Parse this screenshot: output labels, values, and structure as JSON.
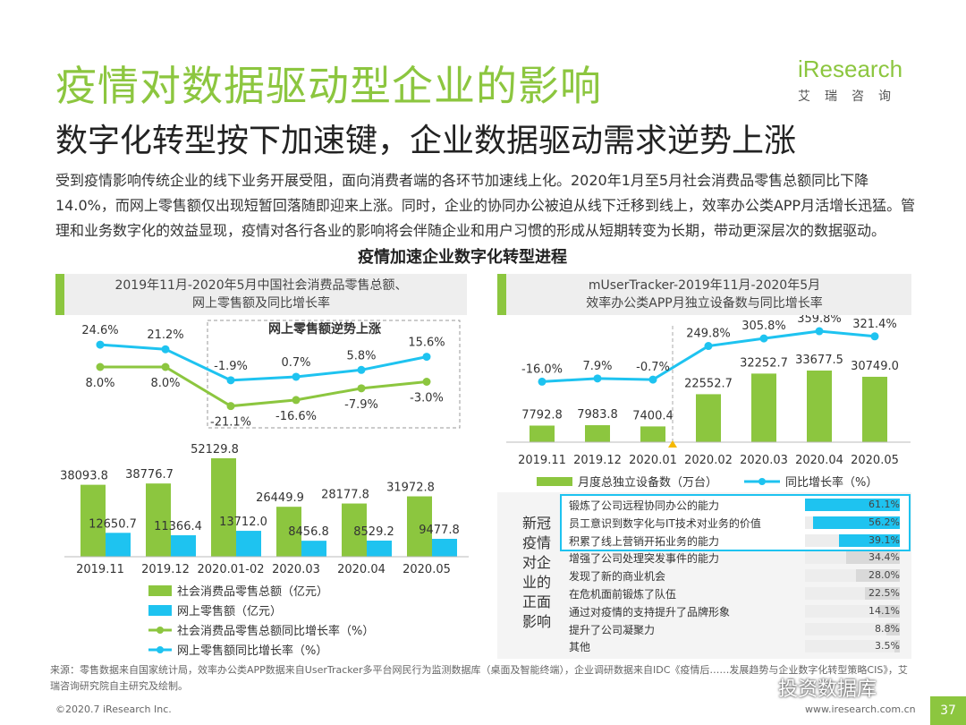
{
  "header": {
    "title": "疫情对数据驱动型企业的影响",
    "subtitle": "数字化转型按下加速键，企业数据驱动需求逆势上涨",
    "logo_text": "iResearch",
    "logo_cn": "艾瑞咨询"
  },
  "intro": "受到疫情影响传统企业的线下业务开展受阻，面向消费者端的各环节加速线上化。2020年1月至5月社会消费品零售总额同比下降14.0%，而网上零售额仅出现短暂回落随即迎来上涨。同时，企业的协同办公被迫从线下迁移到线上，效率办公类APP月活增长迅猛。管理和业务数字化的效益显现，疫情对各行各业的影响将会伴随企业和用户习惯的形成从短期转变为长期，带动更深层次的数据驱动。",
  "section_title": "疫情加速企业数字化转型进程",
  "left_panel": {
    "header_line1": "2019年11月-2020年5月中国社会消费品零售总额、",
    "header_line2": "网上零售额及同比增长率",
    "annotation": "网上零售额逆势上涨"
  },
  "right_panel": {
    "header_line1": "mUserTracker-2019年11月-2020年5月",
    "header_line2": "效率办公类APP月独立设备数与同比增长率"
  },
  "survey": {
    "label": "新冠疫情对企业的正面影响",
    "label_lines": [
      "新冠",
      "疫情",
      "对企",
      "业的",
      "正面",
      "影响"
    ],
    "items": [
      {
        "text": "锻炼了公司远程协同办公的能力",
        "value": "61.1%",
        "pct": 61.1,
        "highlight": true
      },
      {
        "text": "员工意识到数字化与IT技术对业务的价值",
        "value": "56.2%",
        "pct": 56.2,
        "highlight": true
      },
      {
        "text": "积累了线上营销开拓业务的能力",
        "value": "39.1%",
        "pct": 39.1,
        "highlight": true
      },
      {
        "text": "增强了公司处理突发事件的能力",
        "value": "34.4%",
        "pct": 34.4,
        "highlight": false
      },
      {
        "text": "发现了新的商业机会",
        "value": "28.0%",
        "pct": 28.0,
        "highlight": false
      },
      {
        "text": "在危机面前锻炼了队伍",
        "value": "22.5%",
        "pct": 22.5,
        "highlight": false
      },
      {
        "text": "通过对疫情的支持提升了品牌形象",
        "value": "14.1%",
        "pct": 14.1,
        "highlight": false
      },
      {
        "text": "提升了公司凝聚力",
        "value": "8.8%",
        "pct": 8.8,
        "highlight": false
      },
      {
        "text": "其他",
        "value": "3.5%",
        "pct": 3.5,
        "highlight": false
      }
    ]
  },
  "chart_data": [
    {
      "type": "bar",
      "categories": [
        "2019.11",
        "2019.12",
        "2020.01-02",
        "2020.03",
        "2020.04",
        "2020.05"
      ],
      "series": [
        {
          "name": "社会消费品零售总额（亿元）",
          "values": [
            38093.8,
            38776.7,
            52129.8,
            26449.9,
            28177.8,
            31972.8
          ],
          "labels": [
            "38093.8",
            "38776.7",
            "52129.8",
            "26449.9",
            "28177.8",
            "31972.8"
          ]
        },
        {
          "name": "网上零售额（亿元）",
          "values": [
            12650.7,
            11366.4,
            13712.0,
            8456.8,
            8529.2,
            9477.8
          ],
          "labels": [
            "12650.7",
            "11366.4",
            "13712.0",
            "8456.8",
            "8529.2",
            "9477.8"
          ]
        },
        {
          "name": "社会消费品零售总额同比增长率（%）",
          "values": [
            8.0,
            8.0,
            -21.1,
            -16.6,
            -7.9,
            -3.0
          ],
          "labels": [
            "8.0%",
            "8.0%",
            "-21.1%",
            "-16.6%",
            "-7.9%",
            "-3.0%"
          ]
        },
        {
          "name": "网上零售额同比增长率（%）",
          "values": [
            24.6,
            21.2,
            -1.9,
            0.7,
            5.8,
            15.6
          ],
          "labels": [
            "24.6%",
            "21.2%",
            "-1.9%",
            "0.7%",
            "5.8%",
            "15.6%"
          ]
        }
      ]
    },
    {
      "type": "bar",
      "categories": [
        "2019.11",
        "2019.12",
        "2020.01",
        "2020.02",
        "2020.03",
        "2020.04",
        "2020.05"
      ],
      "series": [
        {
          "name": "月度总独立设备数（万台）",
          "values": [
            7792.8,
            7983.8,
            7400.4,
            22552.7,
            32252.7,
            33677.5,
            30749.0
          ],
          "labels": [
            "7792.8",
            "7983.8",
            "7400.4",
            "22552.7",
            "32252.7",
            "33677.5",
            "30749.0"
          ]
        },
        {
          "name": "同比增长率（%）",
          "values": [
            -16.0,
            7.9,
            -0.7,
            249.8,
            305.8,
            359.8,
            321.4
          ],
          "labels": [
            "-16.0%",
            "7.9%",
            "-0.7%",
            "249.8%",
            "305.8%",
            "359.8%",
            "321.4%"
          ]
        }
      ]
    },
    {
      "type": "bar",
      "title": "新冠疫情对企业的正面影响",
      "categories": [
        "锻炼了公司远程协同办公的能力",
        "员工意识到数字化与IT技术对业务的价值",
        "积累了线上营销开拓业务的能力",
        "增强了公司处理突发事件的能力",
        "发现了新的商业机会",
        "在危机面前锻炼了队伍",
        "通过对疫情的支持提升了品牌形象",
        "提升了公司凝聚力",
        "其他"
      ],
      "values": [
        61.1,
        56.2,
        39.1,
        34.4,
        28.0,
        22.5,
        14.1,
        8.8,
        3.5
      ]
    }
  ],
  "footer": {
    "source": "来源：零售数据来自国家统计局，效率办公类APP数据来自UserTracker多平台网民行为监测数据库（桌面及智能终端），企业调研数据来自IDC《疫情后……发展趋势与企业数字化转型策略CIS》，艾瑞咨询研究院自主研究及绘制。",
    "copyright": "©2020.7 iResearch Inc.",
    "website": "www.iresearch.com.cn",
    "page": "37",
    "watermark": "投资数据库"
  },
  "colors": {
    "green": "#8cc63f",
    "cyan": "#1ec3f0",
    "grey_bar": "#d9d9d9"
  }
}
